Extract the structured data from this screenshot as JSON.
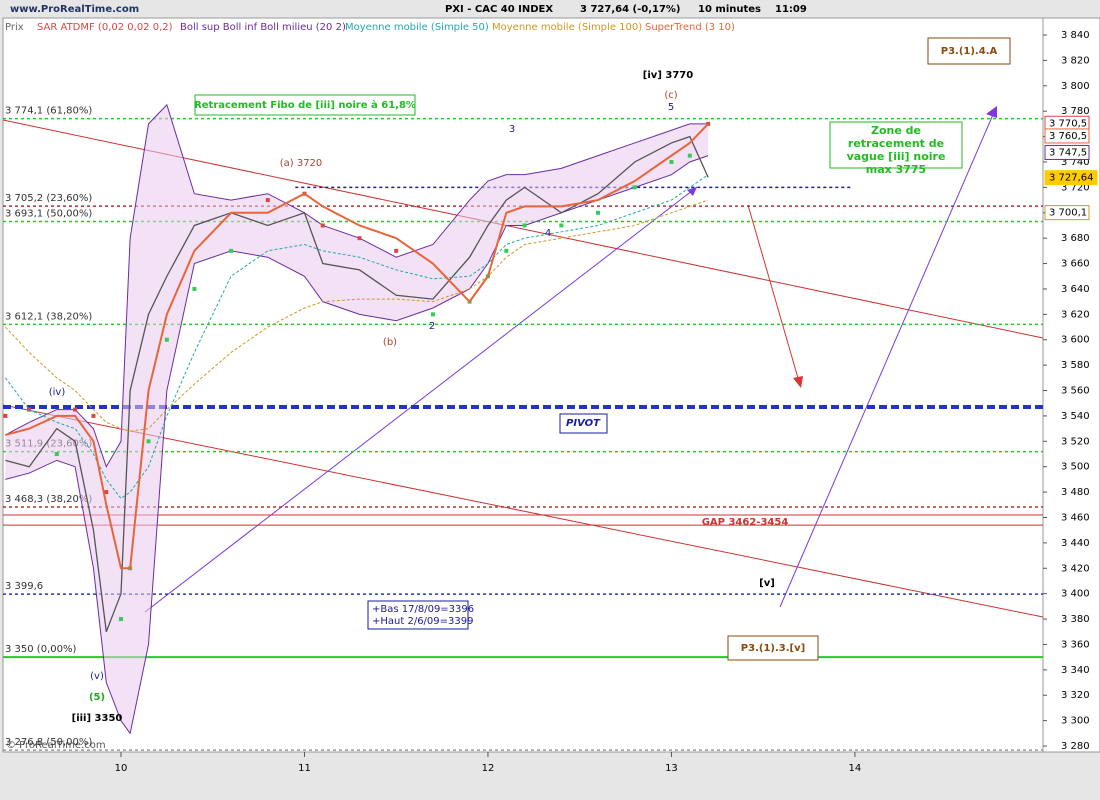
{
  "chart_data": {
    "type": "line",
    "site": "www.ProRealTime.com",
    "title": "PXI - CAC 40 INDEX",
    "price": "3 727,64 (-0,17%)",
    "interval": "10 minutes",
    "time": "11:09",
    "copyright": "© ProRealTime.com",
    "xlim": [
      9.357,
      15.025
    ],
    "xticks": [
      10,
      11,
      12,
      13,
      14
    ],
    "ylim": [
      3275.3,
      3853.4
    ],
    "yticks": [
      {
        "value": 3280,
        "label": "3 280"
      },
      {
        "value": 3300,
        "label": "3 300"
      },
      {
        "value": 3320,
        "label": "3 320"
      },
      {
        "value": 3340,
        "label": "3 340"
      },
      {
        "value": 3360,
        "label": "3 360"
      },
      {
        "value": 3380,
        "label": "3 380"
      },
      {
        "value": 3400,
        "label": "3 400"
      },
      {
        "value": 3420,
        "label": "3 420"
      },
      {
        "value": 3440,
        "label": "3 440"
      },
      {
        "value": 3460,
        "label": "3 460"
      },
      {
        "value": 3480,
        "label": "3 480"
      },
      {
        "value": 3500,
        "label": "3 500"
      },
      {
        "value": 3520,
        "label": "3 520"
      },
      {
        "value": 3540,
        "label": "3 540"
      },
      {
        "value": 3560,
        "label": "3 560"
      },
      {
        "value": 3580,
        "label": "3 580"
      },
      {
        "value": 3600,
        "label": "3 600"
      },
      {
        "value": 3620,
        "label": "3 620"
      },
      {
        "value": 3640,
        "label": "3 640"
      },
      {
        "value": 3660,
        "label": "3 660"
      },
      {
        "value": 3680,
        "label": "3 680"
      },
      {
        "value": 3700,
        "label": "3 700"
      },
      {
        "value": 3720,
        "label": "3 720"
      },
      {
        "value": 3740,
        "label": "3 740"
      },
      {
        "value": 3760,
        "label": "3 760"
      },
      {
        "value": 3780,
        "label": "3 780"
      },
      {
        "value": 3800,
        "label": "3 800"
      },
      {
        "value": 3820,
        "label": "3 820"
      },
      {
        "value": 3840,
        "label": "3 840"
      }
    ],
    "x": [
      9.37,
      9.5,
      9.65,
      9.75,
      9.85,
      9.92,
      10.0,
      10.05,
      10.15,
      10.25,
      10.4,
      10.6,
      10.8,
      11.0,
      11.1,
      11.3,
      11.5,
      11.7,
      11.9,
      12.0,
      12.1,
      12.2,
      12.4,
      12.6,
      12.8,
      13.0,
      13.1,
      13.2
    ],
    "series": [
      {
        "name": "Prix",
        "color": "#555555",
        "style": "price",
        "values": [
          3505,
          3500,
          3530,
          3520,
          3450,
          3370,
          3400,
          3560,
          3620,
          3650,
          3690,
          3700,
          3690,
          3700,
          3660,
          3655,
          3635,
          3632,
          3665,
          3690,
          3710,
          3720,
          3700,
          3715,
          3740,
          3755,
          3760,
          3728
        ]
      },
      {
        "name": "SAR ATDMF (0,02 0,02 0,2)",
        "color": "#dd4444",
        "style": "dots",
        "values": [
          3540,
          3545,
          3510,
          3545,
          3540,
          3480,
          3380,
          3420,
          3520,
          3600,
          3640,
          3670,
          3710,
          3715,
          3690,
          3680,
          3670,
          3620,
          3630,
          3650,
          3670,
          3690,
          3690,
          3700,
          3720,
          3740,
          3745,
          3770
        ]
      },
      {
        "name": "Boll sup Boll inf Boll milieu (20 2)",
        "color": "#6a2ca0",
        "style": "band",
        "values": [
          3525,
          3535,
          3545,
          3545,
          3530,
          3500,
          3520,
          3680,
          3770,
          3785,
          3715,
          3710,
          3715,
          3700,
          3690,
          3680,
          3665,
          3675,
          3710,
          3725,
          3730,
          3730,
          3735,
          3745,
          3755,
          3765,
          3770,
          3770
        ],
        "lower": [
          3490,
          3495,
          3505,
          3500,
          3420,
          3330,
          3300,
          3290,
          3360,
          3560,
          3660,
          3670,
          3665,
          3650,
          3630,
          3620,
          3615,
          3625,
          3640,
          3660,
          3690,
          3690,
          3700,
          3710,
          3720,
          3730,
          3740,
          3745
        ]
      },
      {
        "name": "Moyenne mobile (Simple 50)",
        "color": "#22aaaa",
        "style": "dashed",
        "values": [
          3570,
          3545,
          3535,
          3530,
          3510,
          3490,
          3475,
          3480,
          3500,
          3540,
          3590,
          3650,
          3670,
          3675,
          3670,
          3665,
          3655,
          3648,
          3650,
          3660,
          3675,
          3680,
          3685,
          3690,
          3700,
          3710,
          3720,
          3730
        ]
      },
      {
        "name": "Moyenne mobile (Simple 100)",
        "color": "#cc9922",
        "style": "dashed",
        "values": [
          3610,
          3590,
          3570,
          3560,
          3545,
          3535,
          3530,
          3528,
          3530,
          3545,
          3565,
          3590,
          3610,
          3625,
          3630,
          3632,
          3632,
          3630,
          3640,
          3650,
          3665,
          3675,
          3680,
          3685,
          3690,
          3700,
          3705,
          3710
        ]
      },
      {
        "name": "SuperTrend (3 10)",
        "color": "#e8653a",
        "style": "solid",
        "values": [
          3525,
          3530,
          3540,
          3540,
          3520,
          3470,
          3420,
          3420,
          3560,
          3620,
          3670,
          3700,
          3700,
          3715,
          3705,
          3690,
          3680,
          3660,
          3630,
          3650,
          3700,
          3705,
          3705,
          3710,
          3725,
          3745,
          3755,
          3770
        ]
      }
    ],
    "levels": [
      {
        "value": 3774.1,
        "label": "3 774,1 (61,80%)",
        "color": "#22cc22",
        "style": "dotted"
      },
      {
        "value": 3720,
        "color": "#1a1aa0",
        "style": "dotted",
        "short": true
      },
      {
        "value": 3705.2,
        "label": "3 705,2 (23,60%)",
        "color": "#aa3333",
        "style": "dotted"
      },
      {
        "value": 3693.1,
        "label": "3 693,1 (50,00%)",
        "color": "#22cc22",
        "style": "dotted"
      },
      {
        "value": 3612.1,
        "label": "3 612,1 (38,20%)",
        "color": "#22cc22",
        "style": "dotted"
      },
      {
        "value": 3547,
        "color": "#2233cc",
        "style": "pivot"
      },
      {
        "value": 3511.9,
        "label": "3 511,9 (23,60%)",
        "color": "#22cc22",
        "style": "dotted"
      },
      {
        "value": 3468.3,
        "label": "3 468,3 (38,20%)",
        "color": "#aa3333",
        "style": "dotted"
      },
      {
        "value": 3462,
        "color": "#cc3333",
        "style": "solid"
      },
      {
        "value": 3454,
        "color": "#cc3333",
        "style": "solid"
      },
      {
        "value": 3399.6,
        "label": "3 399,6",
        "color": "#2233cc",
        "style": "dotted"
      },
      {
        "value": 3350,
        "label": "3 350 (0,00%)",
        "color": "#22cc22",
        "style": "thick"
      },
      {
        "value": 3276.8,
        "label": "3 276,8 (50,00%)",
        "color": "#999999",
        "style": "dotted"
      }
    ],
    "price_tags": [
      {
        "value": 3770.5,
        "label": "3 770,5",
        "color": "#dd4444"
      },
      {
        "value": 3760.5,
        "label": "3 760,5",
        "color": "#e8653a"
      },
      {
        "value": 3747.5,
        "label": "3 747,5",
        "color": "#6a2ca0"
      },
      {
        "value": 3727.64,
        "label": "3 727,64",
        "color": "#ffcc00"
      },
      {
        "value": 3700.1,
        "label": "3 700,1",
        "color": "#cc9922"
      }
    ],
    "annotations": [
      {
        "text": "Retracement Fibo de [iii] noire à 61,8%",
        "color": "#22bb22"
      },
      {
        "text": "[iv] 3770",
        "color": "#000000"
      },
      {
        "text": "(c)",
        "color": "#aa4433"
      },
      {
        "text": "5",
        "color": "#1a1aa0"
      },
      {
        "text": "3",
        "color": "#1a1aa0"
      },
      {
        "text": "(a) 3720",
        "color": "#aa4433"
      },
      {
        "text": "4",
        "color": "#1a1aa0"
      },
      {
        "text": "2",
        "color": "#1a1aa0"
      },
      {
        "text": "(b)",
        "color": "#aa4433"
      },
      {
        "text": "(iv)",
        "color": "#1a1aa0"
      },
      {
        "text": "(v)",
        "color": "#1a1aa0"
      },
      {
        "text": "(5)",
        "color": "#22aa22"
      },
      {
        "text": "[iii] 3350",
        "color": "#000000"
      },
      {
        "text": "PIVOT",
        "color": "#1a1aa0"
      },
      {
        "text": "GAP 3462-3454",
        "color": "#cc3333"
      },
      {
        "text": "[v]",
        "color": "#000000"
      },
      {
        "text": "P3.(1).4.A",
        "color": "#8a4a10"
      },
      {
        "text": "P3.(1).3.[v]",
        "color": "#8a4a10"
      },
      {
        "text": "Zone de retracement de vague [iii] noire max 3775",
        "color": "#22bb22"
      },
      {
        "text": "+Bas 17/8/09=3396",
        "color": "#1a1aa0"
      },
      {
        "text": "+Haut 2/6/09=3399",
        "color": "#1a1aa0"
      }
    ]
  }
}
